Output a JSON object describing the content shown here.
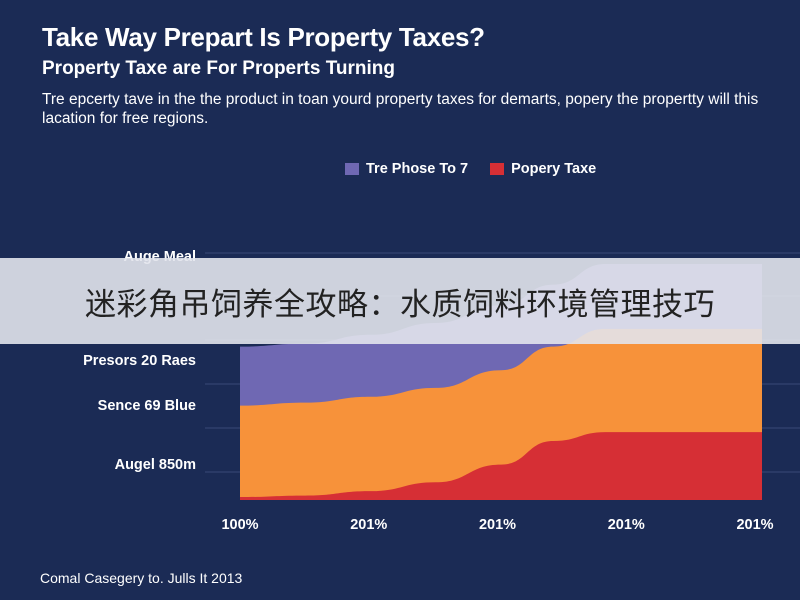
{
  "banner": {
    "text": "迷彩角吊饲养全攻略：水质饲料环境管理技巧"
  },
  "footer": {
    "text": "Comal Casegery to. Julls It 2013"
  },
  "chart_data": {
    "type": "area",
    "title": "Take Way Prepart Is Property Taxes?",
    "subtitle": "Property Taxe are For Properts Turning",
    "description": "Tre epcerty tave in the the product in toan yourd property taxes for demarts, popery the propertty will this lacation for free regions.",
    "x_tick_labels": [
      "100%",
      "201%",
      "201%",
      "201%",
      "201%"
    ],
    "y_category_labels": [
      "Auge Meal",
      "",
      "Presors 20 Raes",
      "Sence 69 Blue",
      "Augel 850m"
    ],
    "legend_placement": "top",
    "grid": true,
    "ylim": [
      0,
      100
    ],
    "xlim": [
      0,
      4
    ],
    "series": [
      {
        "name": "Tre Phose To 7",
        "color": "#6f68b3",
        "values": [
          [
            0,
            52
          ],
          [
            0.5,
            53
          ],
          [
            1,
            56
          ],
          [
            1.5,
            60
          ],
          [
            2,
            66
          ],
          [
            2.4,
            73
          ],
          [
            2.8,
            80
          ],
          [
            3,
            80
          ],
          [
            3.5,
            80
          ],
          [
            4,
            80
          ]
        ]
      },
      {
        "name": "",
        "color": "#f7923a",
        "values": [
          [
            0,
            32
          ],
          [
            0.5,
            33
          ],
          [
            1,
            35
          ],
          [
            1.5,
            38
          ],
          [
            2,
            44
          ],
          [
            2.4,
            52
          ],
          [
            2.8,
            58
          ],
          [
            3,
            58
          ],
          [
            3.5,
            58
          ],
          [
            4,
            58
          ]
        ]
      },
      {
        "name": "Popery Taxe",
        "color": "#d62f35",
        "values": [
          [
            0,
            1
          ],
          [
            0.5,
            1.5
          ],
          [
            1,
            3
          ],
          [
            1.5,
            6
          ],
          [
            2,
            12
          ],
          [
            2.4,
            20
          ],
          [
            2.8,
            23
          ],
          [
            3,
            23
          ],
          [
            3.5,
            23
          ],
          [
            4,
            23
          ]
        ]
      }
    ]
  }
}
